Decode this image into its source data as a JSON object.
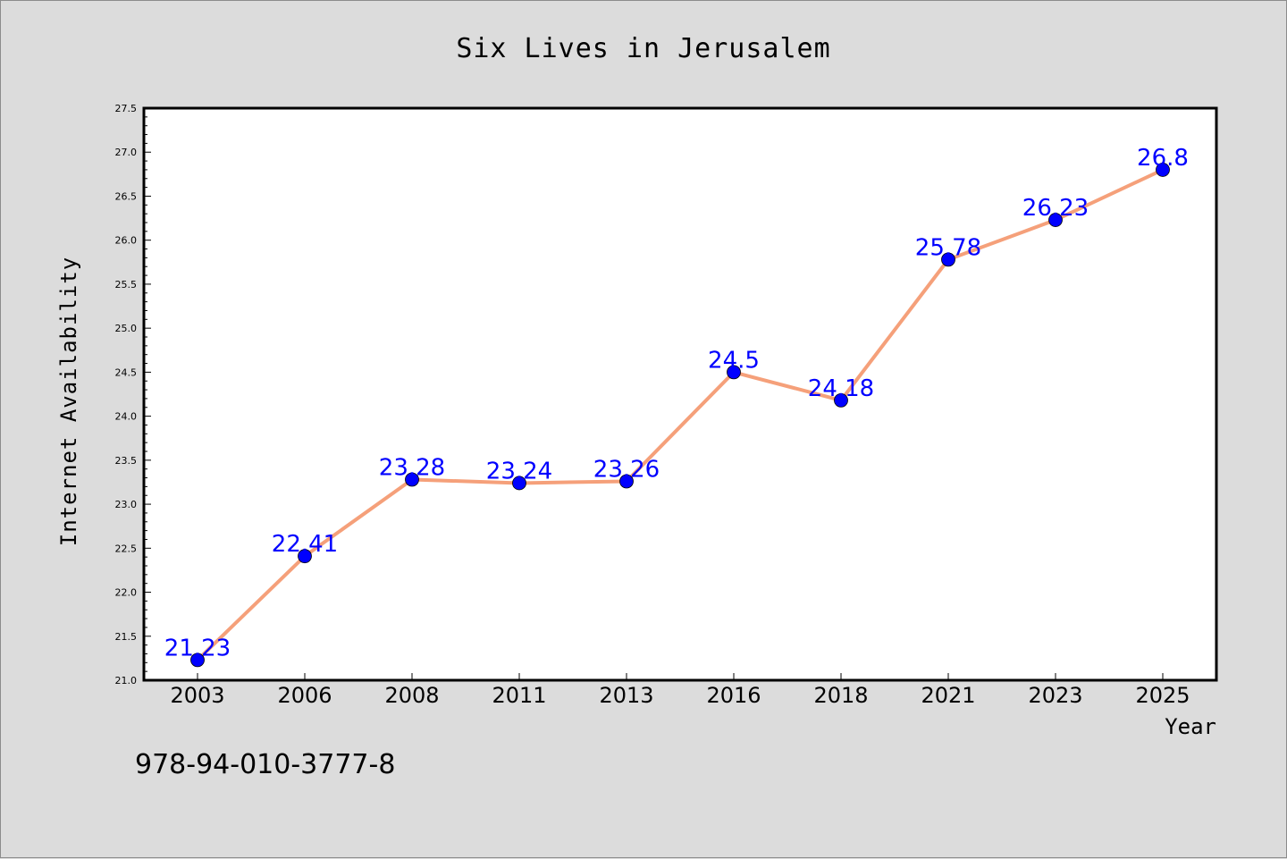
{
  "chart_data": {
    "type": "line",
    "title": "Six Lives in Jerusalem",
    "xlabel": "Year",
    "ylabel": "Internet Availability",
    "categories": [
      "2003",
      "2006",
      "2008",
      "2011",
      "2013",
      "2016",
      "2018",
      "2021",
      "2023",
      "2025"
    ],
    "series": [
      {
        "values": [
          21.23,
          22.41,
          23.28,
          23.24,
          23.26,
          24.5,
          24.18,
          25.78,
          26.23,
          26.8
        ],
        "labels": [
          "21.23",
          "22.41",
          "23.28",
          "23.24",
          "23.26",
          "24.5",
          "24.18",
          "25.78",
          "26.23",
          "26.8"
        ],
        "line_color": "#f5a07a",
        "marker_color": "#0000ff"
      }
    ],
    "ylim": [
      21.0,
      27.5
    ],
    "yticks": [
      "21.0",
      "21.5",
      "22.0",
      "22.5",
      "23.0",
      "23.5",
      "24.0",
      "24.5",
      "25.0",
      "25.5",
      "26.0",
      "26.5",
      "27.0",
      "27.5"
    ],
    "grid": false,
    "legend": "none"
  },
  "annotation": "978-94-010-3777-8",
  "colors": {
    "background": "#dcdcdc",
    "plot_background": "#ffffff",
    "line": "#f5a07a",
    "marker": "#0000ff",
    "data_label": "#0000ff"
  }
}
